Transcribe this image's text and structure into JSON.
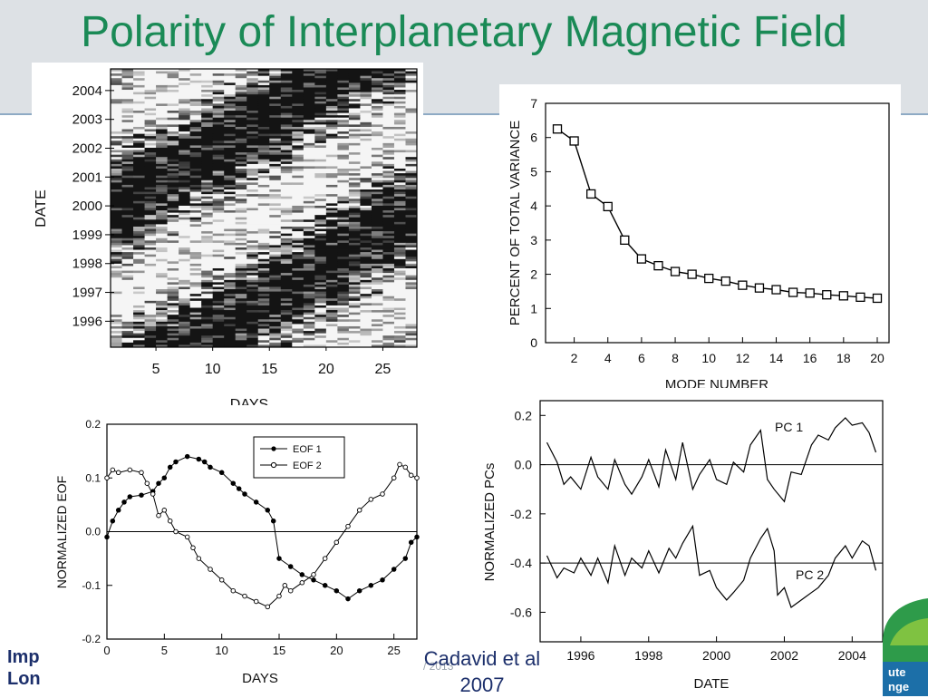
{
  "slide": {
    "title": "Polarity of Interplanetary Magnetic Field",
    "citation_line1": "Cadavid et al",
    "citation_line2": "2007",
    "page_fragment": "/ 2013",
    "left_logo_line1": "Imp",
    "left_logo_line2": "Lon",
    "right_logo_line1": "ute",
    "right_logo_line2": "nge"
  },
  "colors": {
    "title": "#1a8a56",
    "band": "#dde1e5",
    "rule": "#8eaac4",
    "logo_navy": "#1c2f6b"
  },
  "chart_data": [
    {
      "id": "polarity-map",
      "type": "heatmap",
      "xlabel": "DAYS",
      "ylabel": "DATE",
      "x_ticks": [
        5,
        10,
        15,
        20,
        25
      ],
      "y_ticks": [
        "1996",
        "1997",
        "1998",
        "1999",
        "2000",
        "2001",
        "2002",
        "2003",
        "2004"
      ],
      "xlim": [
        1,
        27
      ],
      "ylim": [
        1995.1,
        2004.75
      ],
      "note": "Black/white rows of daily IMF polarity per Carrington rotation"
    },
    {
      "id": "variance",
      "type": "line",
      "xlabel": "MODE NUMBER",
      "ylabel": "PERCENT OF TOTAL VARIANCE",
      "x": [
        1,
        2,
        3,
        4,
        5,
        6,
        7,
        8,
        9,
        10,
        11,
        12,
        13,
        14,
        15,
        16,
        17,
        18,
        19,
        20
      ],
      "values": [
        6.25,
        5.9,
        4.35,
        3.98,
        3.0,
        2.45,
        2.25,
        2.08,
        2.0,
        1.88,
        1.8,
        1.68,
        1.6,
        1.55,
        1.47,
        1.45,
        1.4,
        1.37,
        1.33,
        1.3
      ],
      "x_ticks": [
        2,
        4,
        6,
        8,
        10,
        12,
        14,
        16,
        18,
        20
      ],
      "y_ticks": [
        0,
        1,
        2,
        3,
        4,
        5,
        6,
        7
      ],
      "xlim": [
        0.3,
        20.7
      ],
      "ylim": [
        0,
        7
      ]
    },
    {
      "id": "eof",
      "type": "line",
      "xlabel": "DAYS",
      "ylabel": "NORMALIZED EOF",
      "x_ticks": [
        0,
        5,
        10,
        15,
        20,
        25
      ],
      "y_ticks": [
        "0.2",
        "0.1",
        "0.0",
        "-0.1",
        "-0.2"
      ],
      "y_tick_values": [
        0.2,
        0.1,
        0.0,
        -0.1,
        -0.2
      ],
      "xlim": [
        0,
        27
      ],
      "ylim": [
        -0.2,
        0.2
      ],
      "legend": {
        "position": "top-right"
      },
      "series": [
        {
          "name": "EOF 1",
          "marker": "filled",
          "points": [
            [
              0,
              -0.01
            ],
            [
              0.5,
              0.02
            ],
            [
              1,
              0.04
            ],
            [
              1.5,
              0.055
            ],
            [
              2,
              0.065
            ],
            [
              3,
              0.068
            ],
            [
              4,
              0.075
            ],
            [
              4.5,
              0.09
            ],
            [
              5,
              0.1
            ],
            [
              5.5,
              0.12
            ],
            [
              6,
              0.13
            ],
            [
              7,
              0.14
            ],
            [
              8,
              0.135
            ],
            [
              8.5,
              0.13
            ],
            [
              9,
              0.12
            ],
            [
              10,
              0.11
            ],
            [
              11,
              0.09
            ],
            [
              11.5,
              0.08
            ],
            [
              12,
              0.07
            ],
            [
              13,
              0.055
            ],
            [
              14,
              0.04
            ],
            [
              14.5,
              0.02
            ],
            [
              15,
              -0.05
            ],
            [
              16,
              -0.065
            ],
            [
              17,
              -0.08
            ],
            [
              18,
              -0.09
            ],
            [
              19,
              -0.1
            ],
            [
              20,
              -0.11
            ],
            [
              21,
              -0.125
            ],
            [
              22,
              -0.11
            ],
            [
              23,
              -0.1
            ],
            [
              24,
              -0.09
            ],
            [
              25,
              -0.07
            ],
            [
              26,
              -0.05
            ],
            [
              26.5,
              -0.02
            ],
            [
              27,
              -0.01
            ]
          ]
        },
        {
          "name": "EOF 2",
          "marker": "open",
          "points": [
            [
              0,
              0.1
            ],
            [
              0.5,
              0.115
            ],
            [
              1,
              0.11
            ],
            [
              2,
              0.115
            ],
            [
              3,
              0.11
            ],
            [
              3.5,
              0.09
            ],
            [
              4,
              0.07
            ],
            [
              4.5,
              0.03
            ],
            [
              5,
              0.04
            ],
            [
              5.5,
              0.02
            ],
            [
              6,
              0.0
            ],
            [
              7,
              -0.01
            ],
            [
              7.5,
              -0.03
            ],
            [
              8,
              -0.05
            ],
            [
              9,
              -0.07
            ],
            [
              10,
              -0.09
            ],
            [
              11,
              -0.11
            ],
            [
              12,
              -0.12
            ],
            [
              13,
              -0.13
            ],
            [
              14,
              -0.14
            ],
            [
              15,
              -0.12
            ],
            [
              15.5,
              -0.1
            ],
            [
              16,
              -0.11
            ],
            [
              17,
              -0.095
            ],
            [
              18,
              -0.08
            ],
            [
              19,
              -0.05
            ],
            [
              20,
              -0.02
            ],
            [
              21,
              0.01
            ],
            [
              22,
              0.04
            ],
            [
              23,
              0.06
            ],
            [
              24,
              0.07
            ],
            [
              25,
              0.1
            ],
            [
              25.5,
              0.125
            ],
            [
              26,
              0.12
            ],
            [
              26.5,
              0.105
            ],
            [
              27,
              0.1
            ]
          ]
        }
      ]
    },
    {
      "id": "pcs",
      "type": "line",
      "xlabel": "DATE",
      "ylabel": "NORMALIZED PCs",
      "x_ticks": [
        "1996",
        "1998",
        "2000",
        "2002",
        "2004"
      ],
      "x_tick_values": [
        1996,
        1998,
        2000,
        2002,
        2004
      ],
      "y_ticks": [
        "0.2",
        "0.0",
        "-0.2",
        "-0.4",
        "-0.6"
      ],
      "y_tick_values": [
        0.2,
        0.0,
        -0.2,
        -0.4,
        -0.6
      ],
      "xlim": [
        1994.8,
        2004.9
      ],
      "ylim": [
        -0.72,
        0.26
      ],
      "series": [
        {
          "name": "PC 1",
          "reference": 0.0,
          "points": [
            [
              1995.0,
              0.09
            ],
            [
              1995.3,
              0.01
            ],
            [
              1995.5,
              -0.08
            ],
            [
              1995.7,
              -0.05
            ],
            [
              1996.0,
              -0.1
            ],
            [
              1996.3,
              0.03
            ],
            [
              1996.5,
              -0.05
            ],
            [
              1996.8,
              -0.1
            ],
            [
              1997.0,
              0.02
            ],
            [
              1997.3,
              -0.08
            ],
            [
              1997.5,
              -0.12
            ],
            [
              1997.8,
              -0.05
            ],
            [
              1998.0,
              0.02
            ],
            [
              1998.3,
              -0.09
            ],
            [
              1998.5,
              0.06
            ],
            [
              1998.8,
              -0.06
            ],
            [
              1999.0,
              0.09
            ],
            [
              1999.3,
              -0.1
            ],
            [
              1999.5,
              -0.04
            ],
            [
              1999.8,
              0.02
            ],
            [
              2000.0,
              -0.06
            ],
            [
              2000.3,
              -0.08
            ],
            [
              2000.5,
              0.01
            ],
            [
              2000.8,
              -0.03
            ],
            [
              2001.0,
              0.08
            ],
            [
              2001.3,
              0.14
            ],
            [
              2001.5,
              -0.06
            ],
            [
              2001.7,
              -0.1
            ],
            [
              2002.0,
              -0.15
            ],
            [
              2002.2,
              -0.03
            ],
            [
              2002.5,
              -0.04
            ],
            [
              2002.8,
              0.08
            ],
            [
              2003.0,
              0.12
            ],
            [
              2003.3,
              0.1
            ],
            [
              2003.5,
              0.15
            ],
            [
              2003.8,
              0.19
            ],
            [
              2004.0,
              0.16
            ],
            [
              2004.3,
              0.17
            ],
            [
              2004.5,
              0.13
            ],
            [
              2004.7,
              0.05
            ]
          ]
        },
        {
          "name": "PC 2",
          "reference": -0.4,
          "points": [
            [
              1995.0,
              -0.37
            ],
            [
              1995.3,
              -0.46
            ],
            [
              1995.5,
              -0.42
            ],
            [
              1995.8,
              -0.44
            ],
            [
              1996.0,
              -0.38
            ],
            [
              1996.3,
              -0.45
            ],
            [
              1996.5,
              -0.38
            ],
            [
              1996.8,
              -0.48
            ],
            [
              1997.0,
              -0.33
            ],
            [
              1997.3,
              -0.45
            ],
            [
              1997.5,
              -0.38
            ],
            [
              1997.8,
              -0.42
            ],
            [
              1998.0,
              -0.35
            ],
            [
              1998.3,
              -0.44
            ],
            [
              1998.6,
              -0.34
            ],
            [
              1998.8,
              -0.38
            ],
            [
              1999.0,
              -0.32
            ],
            [
              1999.3,
              -0.25
            ],
            [
              1999.5,
              -0.45
            ],
            [
              1999.8,
              -0.43
            ],
            [
              2000.0,
              -0.5
            ],
            [
              2000.3,
              -0.55
            ],
            [
              2000.5,
              -0.52
            ],
            [
              2000.8,
              -0.47
            ],
            [
              2001.0,
              -0.38
            ],
            [
              2001.3,
              -0.3
            ],
            [
              2001.5,
              -0.26
            ],
            [
              2001.7,
              -0.35
            ],
            [
              2001.8,
              -0.53
            ],
            [
              2002.0,
              -0.5
            ],
            [
              2002.2,
              -0.58
            ],
            [
              2002.5,
              -0.55
            ],
            [
              2002.8,
              -0.52
            ],
            [
              2003.0,
              -0.5
            ],
            [
              2003.3,
              -0.45
            ],
            [
              2003.5,
              -0.38
            ],
            [
              2003.8,
              -0.33
            ],
            [
              2004.0,
              -0.38
            ],
            [
              2004.3,
              -0.31
            ],
            [
              2004.5,
              -0.33
            ],
            [
              2004.7,
              -0.43
            ]
          ]
        }
      ]
    }
  ]
}
